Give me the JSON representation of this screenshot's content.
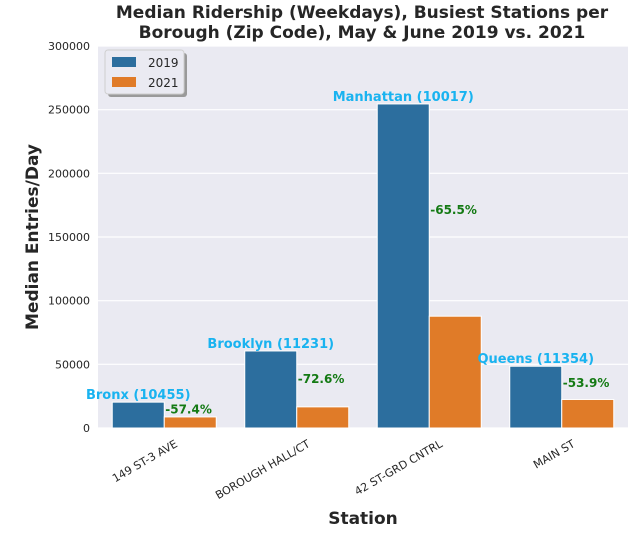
{
  "chart_data": {
    "type": "bar",
    "title_lines": [
      "Median Ridership (Weekdays), Busiest Stations per",
      "Borough (Zip Code), May & June 2019 vs. 2021"
    ],
    "xlabel": "Station",
    "ylabel": "Median Entries/Day",
    "categories": [
      "149 ST-3 AVE",
      "BOROUGH HALL/CT",
      "42 ST-GRD CNTRL",
      "MAIN ST"
    ],
    "series": [
      {
        "name": "2019",
        "color": "#2c6e9e",
        "values": [
          20300,
          60500,
          254500,
          48500
        ]
      },
      {
        "name": "2021",
        "color": "#e07b28",
        "values": [
          8700,
          16600,
          87800,
          22400
        ]
      }
    ],
    "ylim": [
      0,
      300000
    ],
    "yticks": [
      "0",
      "50000",
      "100000",
      "150000",
      "200000",
      "250000",
      "300000"
    ],
    "borough_labels": [
      "Bronx (10455)",
      "Brooklyn (11231)",
      "Manhattan (10017)",
      "Queens (11354)"
    ],
    "borough_label_color": "#19b3f0",
    "pct_changes": [
      "-57.4%",
      "-72.6%",
      "-65.5%",
      "-53.9%"
    ],
    "pct_color": "#147a14",
    "grid": true,
    "legend_position": "top-left",
    "background_color": "#eaeaf2"
  }
}
